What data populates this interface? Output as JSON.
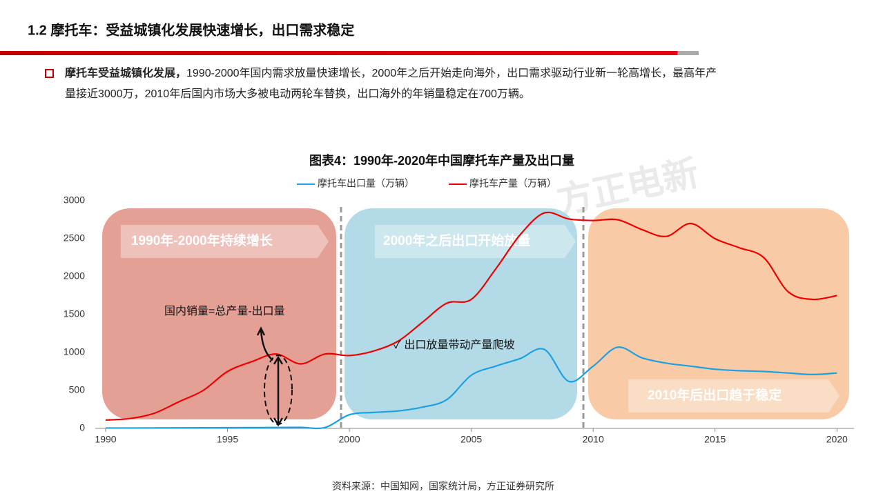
{
  "header": {
    "title": "1.2 摩托车：受益城镇化发展快速增长，出口需求稳定"
  },
  "bullet": {
    "bold": "摩托车受益城镇化发展，",
    "line1": "1990-2000年国内需求放量快速增长，2000年之后开始走向海外，出口需求驱动行业新一轮高增长，最高年产",
    "line2": "量接近3000万，2010年后国内市场大多被电动两轮车替换，出口海外的年销量稳定在700万辆。"
  },
  "chart_data": {
    "type": "line",
    "title": "图表4：1990年-2020年中国摩托车产量及出口量",
    "watermark": "方正电新",
    "x": [
      1990,
      1991,
      1992,
      1993,
      1994,
      1995,
      1996,
      1997,
      1998,
      1999,
      2000,
      2001,
      2002,
      2003,
      2004,
      2005,
      2006,
      2007,
      2008,
      2009,
      2010,
      2011,
      2012,
      2013,
      2014,
      2015,
      2016,
      2017,
      2018,
      2019,
      2020
    ],
    "series": [
      {
        "name": "摩托车出口量（万辆）",
        "color": "#1ba1e2",
        "values": [
          5,
          5,
          6,
          7,
          8,
          9,
          10,
          12,
          14,
          12,
          180,
          210,
          230,
          280,
          380,
          700,
          820,
          920,
          1040,
          620,
          820,
          1070,
          930,
          860,
          820,
          780,
          760,
          750,
          730,
          710,
          730
        ]
      },
      {
        "name": "摩托车产量（万辆）",
        "color": "#ee0000",
        "values": [
          110,
          130,
          200,
          350,
          500,
          750,
          880,
          980,
          850,
          980,
          960,
          1020,
          1150,
          1400,
          1650,
          1700,
          2100,
          2550,
          2840,
          2760,
          2740,
          2750,
          2620,
          2530,
          2700,
          2500,
          2380,
          2250,
          1800,
          1700,
          1750
        ]
      }
    ],
    "xlim": [
      1990,
      2020.7
    ],
    "xticks": [
      1990,
      1995,
      2000,
      2005,
      2010,
      2015,
      2020
    ],
    "ylim": [
      0,
      3000
    ],
    "yticks": [
      0,
      500,
      1000,
      1500,
      2000,
      2500,
      3000
    ],
    "legend": "top",
    "regions": [
      {
        "label": "1990年-2000年持续增长",
        "color": "#e5a096"
      },
      {
        "label": "2000年之后出口开始放量",
        "color": "#b3dbe7"
      },
      {
        "label": "2010年后出口趋于稳定",
        "color": "#f8cba6"
      }
    ],
    "annotations": [
      "国内销量=总产量-出口量",
      "✓ 出口放量带动产量爬坡"
    ],
    "source": "资料来源：中国知网，国家统计局，方正证券研究所"
  }
}
